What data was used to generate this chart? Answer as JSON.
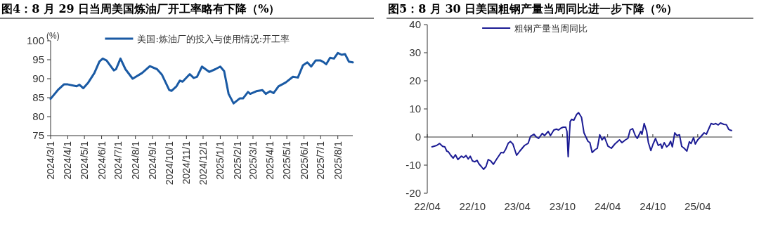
{
  "chart_data": [
    {
      "type": "line",
      "title": "图4：8 月 29 日当周美国炼油厂开工率略有下降（%）",
      "ylabel": "(%)",
      "legend": "top",
      "xlim": [
        "2024-03-01",
        "2025-08-28"
      ],
      "xticks": [
        {
          "value": "2024-03-01",
          "label": "2024/3/1"
        },
        {
          "value": "2024-04-01",
          "label": "2024/4/1"
        },
        {
          "value": "2024-05-01",
          "label": "2024/5/1"
        },
        {
          "value": "2024-06-01",
          "label": "2024/6/1"
        },
        {
          "value": "2024-07-01",
          "label": "2024/7/1"
        },
        {
          "value": "2024-08-01",
          "label": "2024/8/1"
        },
        {
          "value": "2024-09-01",
          "label": "2024/9/1"
        },
        {
          "value": "2024-10-01",
          "label": "2024/10/1"
        },
        {
          "value": "2024-11-01",
          "label": "2024/11/1"
        },
        {
          "value": "2024-12-01",
          "label": "2024/12/1"
        },
        {
          "value": "2025-01-01",
          "label": "2025/1/1"
        },
        {
          "value": "2025-02-01",
          "label": "2025/2/1"
        },
        {
          "value": "2025-03-01",
          "label": "2025/3/1"
        },
        {
          "value": "2025-04-01",
          "label": "2025/4/1"
        },
        {
          "value": "2025-05-01",
          "label": "2025/5/1"
        },
        {
          "value": "2025-06-01",
          "label": "2025/6/1"
        },
        {
          "value": "2025-07-01",
          "label": "2025/7/1"
        },
        {
          "value": "2025-08-01",
          "label": "2025/8/1"
        }
      ],
      "ylim": [
        75,
        100
      ],
      "yticks": [
        75,
        80,
        85,
        90,
        95,
        100
      ],
      "series": [
        {
          "name": "美国:炼油厂的投入与使用情况:开工率",
          "color": "#1a5aa4",
          "x": [
            "2024-03-01",
            "2024-03-14",
            "2024-03-25",
            "2024-04-01",
            "2024-04-17",
            "2024-04-22",
            "2024-04-29",
            "2024-05-08",
            "2024-05-19",
            "2024-05-28",
            "2024-06-03",
            "2024-06-10",
            "2024-06-23",
            "2024-06-27",
            "2024-07-05",
            "2024-07-14",
            "2024-07-27",
            "2024-08-13",
            "2024-08-27",
            "2024-09-09",
            "2024-09-18",
            "2024-10-01",
            "2024-10-05",
            "2024-10-14",
            "2024-10-20",
            "2024-10-25",
            "2024-11-07",
            "2024-11-14",
            "2024-11-20",
            "2024-11-29",
            "2024-12-12",
            "2024-12-23",
            "2025-01-01",
            "2025-01-08",
            "2025-01-16",
            "2025-01-25",
            "2025-02-05",
            "2025-02-11",
            "2025-02-20",
            "2025-02-24",
            "2025-03-07",
            "2025-03-18",
            "2025-03-24",
            "2025-04-01",
            "2025-04-07",
            "2025-04-16",
            "2025-04-29",
            "2025-05-12",
            "2025-05-21",
            "2025-05-30",
            "2025-06-07",
            "2025-06-14",
            "2025-06-22",
            "2025-07-01",
            "2025-07-07",
            "2025-07-11",
            "2025-07-18",
            "2025-07-25",
            "2025-08-01",
            "2025-08-08",
            "2025-08-14",
            "2025-08-21",
            "2025-08-28"
          ],
          "values": [
            84.7,
            87,
            88.5,
            88.5,
            88.0,
            88.4,
            87.5,
            89,
            91.5,
            94.5,
            95.3,
            94.8,
            92.2,
            92.5,
            95.3,
            92.5,
            90.0,
            91.5,
            93.3,
            92.5,
            91.0,
            87.0,
            86.8,
            88,
            89.5,
            89.2,
            91.2,
            90.2,
            90.5,
            93.2,
            91.8,
            92.5,
            93.2,
            92,
            86,
            83.5,
            84.8,
            84.8,
            86.5,
            86,
            86.7,
            87,
            86,
            86.7,
            86.2,
            88,
            89,
            90.5,
            90.3,
            93.5,
            94.3,
            93.2,
            94.8,
            94.8,
            94.3,
            93.8,
            95.5,
            95.3,
            96.8,
            96.3,
            96.5,
            94.5,
            94.3
          ]
        }
      ]
    },
    {
      "type": "line",
      "title": "图5：8 月 30 日美国粗钢产量当周同比进一步下降（%）",
      "legend": "top",
      "xlim": [
        "2022-04-01",
        "2025-08-19"
      ],
      "xticks": [
        {
          "value": "2022-04-01",
          "label": "22/04"
        },
        {
          "value": "2022-10-01",
          "label": "22/10"
        },
        {
          "value": "2023-04-01",
          "label": "23/04"
        },
        {
          "value": "2023-10-01",
          "label": "23/10"
        },
        {
          "value": "2024-04-01",
          "label": "24/04"
        },
        {
          "value": "2024-10-01",
          "label": "24/10"
        },
        {
          "value": "2025-04-01",
          "label": "25/04"
        }
      ],
      "ylim": [
        -20,
        40
      ],
      "yticks": [
        -20,
        -10,
        0,
        10,
        20,
        30,
        40
      ],
      "series": [
        {
          "name": "粗钢产量当周同比",
          "color": "#1c1c94",
          "x": [
            "2022-04-20",
            "2022-05-09",
            "2022-05-21",
            "2022-06-02",
            "2022-06-11",
            "2022-06-19",
            "2022-06-26",
            "2022-07-05",
            "2022-07-15",
            "2022-07-24",
            "2022-08-03",
            "2022-08-17",
            "2022-08-26",
            "2022-09-05",
            "2022-09-14",
            "2022-09-22",
            "2022-10-01",
            "2022-10-11",
            "2022-10-20",
            "2022-10-27",
            "2022-11-06",
            "2022-11-15",
            "2022-11-25",
            "2022-12-04",
            "2022-12-14",
            "2022-12-25",
            "2023-01-06",
            "2023-01-25",
            "2023-02-04",
            "2023-02-13",
            "2023-02-23",
            "2023-03-04",
            "2023-03-14",
            "2023-03-29",
            "2023-04-11",
            "2023-04-30",
            "2023-05-15",
            "2023-05-24",
            "2023-06-07",
            "2023-06-17",
            "2023-06-26",
            "2023-07-11",
            "2023-07-20",
            "2023-08-04",
            "2023-08-13",
            "2023-08-27",
            "2023-09-06",
            "2023-09-15",
            "2023-09-25",
            "2023-10-04",
            "2023-10-14",
            "2023-10-19",
            "2023-10-24",
            "2023-11-01",
            "2023-11-07",
            "2023-11-16",
            "2023-11-27",
            "2023-12-05",
            "2023-12-17",
            "2023-12-27",
            "2024-01-03",
            "2024-01-12",
            "2024-01-20",
            "2024-01-29",
            "2024-02-10",
            "2024-02-19",
            "2024-02-29",
            "2024-03-09",
            "2024-03-19",
            "2024-04-02",
            "2024-04-16",
            "2024-04-30",
            "2024-05-19",
            "2024-05-29",
            "2024-06-12",
            "2024-06-22",
            "2024-07-01",
            "2024-07-11",
            "2024-07-22",
            "2024-07-30",
            "2024-08-13",
            "2024-08-18",
            "2024-08-27",
            "2024-09-06",
            "2024-09-13",
            "2024-09-23",
            "2024-10-02",
            "2024-10-12",
            "2024-10-23",
            "2024-11-02",
            "2024-11-07",
            "2024-11-16",
            "2024-11-26",
            "2024-12-05",
            "2024-12-12",
            "2024-12-19",
            "2024-12-29",
            "2025-01-07",
            "2025-01-17",
            "2025-01-26",
            "2025-02-05",
            "2025-02-16",
            "2025-02-26",
            "2025-03-05",
            "2025-03-15",
            "2025-03-22",
            "2025-04-01",
            "2025-04-12",
            "2025-04-27",
            "2025-05-06",
            "2025-05-16",
            "2025-05-25",
            "2025-06-04",
            "2025-06-13",
            "2025-06-23",
            "2025-07-02",
            "2025-07-16",
            "2025-07-26",
            "2025-08-04",
            "2025-08-09",
            "2025-08-16"
          ],
          "values": [
            -3.5,
            -3,
            -2.3,
            -3.3,
            -3.5,
            -5,
            -5.3,
            -6.5,
            -7.5,
            -6.3,
            -8,
            -6.8,
            -7.3,
            -6.6,
            -7.8,
            -6.8,
            -8.5,
            -8.8,
            -8.3,
            -9.5,
            -10.5,
            -11.5,
            -10.5,
            -8,
            -8.5,
            -9.7,
            -8,
            -5.5,
            -5.6,
            -4.3,
            -2.2,
            -1.6,
            -2.5,
            -6.5,
            -5,
            -3,
            -2.2,
            0.2,
            1,
            0,
            -0.5,
            1.3,
            0.5,
            2,
            0.5,
            2.5,
            2.8,
            2.5,
            3.2,
            3.5,
            3.5,
            2.0,
            -7,
            5.5,
            6.3,
            6.0,
            8.0,
            8.7,
            7.0,
            1.5,
            0.2,
            -1.5,
            -2,
            -5.5,
            -4.5,
            -4,
            0.8,
            -1,
            0,
            -3.2,
            -4,
            -2.5,
            -1,
            -2,
            -1,
            -0.5,
            2.5,
            3.0,
            0.5,
            -0.5,
            2.0,
            1.0,
            4.8,
            2,
            -2,
            -4.8,
            -2.5,
            -0.5,
            -3,
            -2.5,
            -4,
            -2,
            -3.5,
            -2.8,
            -1.5,
            -3.5,
            1.5,
            0.5,
            0.8,
            -3.3,
            -4,
            -5,
            -1.7,
            -2.3,
            -0.2,
            -2.5,
            -1,
            0,
            1.5,
            1,
            3,
            4.8,
            4.5,
            4.8,
            4.3,
            5,
            4.5,
            4.4,
            2.8,
            2.5,
            2.3
          ]
        }
      ]
    }
  ]
}
